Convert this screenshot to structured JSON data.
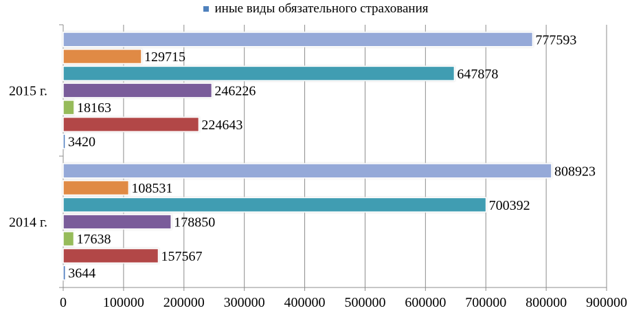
{
  "chart_data": {
    "type": "bar",
    "orientation": "horizontal",
    "categories": [
      "2015 г.",
      "2014 г."
    ],
    "series": [
      {
        "values": [
          777593,
          808923
        ],
        "color": "#95A9D8"
      },
      {
        "values": [
          129715,
          108531
        ],
        "color": "#E08A44"
      },
      {
        "values": [
          647878,
          700392
        ],
        "color": "#3F9DB2"
      },
      {
        "values": [
          246226,
          178850
        ],
        "color": "#7A5C9A"
      },
      {
        "values": [
          18163,
          17638
        ],
        "color": "#96BB5A"
      },
      {
        "values": [
          224643,
          157567
        ],
        "color": "#B24646"
      },
      {
        "values": [
          3420,
          3644
        ],
        "color": "#4E7DBF"
      }
    ],
    "legend": {
      "label": "иные виды обязательного страхования",
      "color": "#4F81BD",
      "position": "top"
    },
    "xlim": [
      0,
      900000
    ],
    "xticks": [
      "0",
      "100000",
      "200000",
      "300000",
      "400000",
      "500000",
      "600000",
      "700000",
      "800000",
      "900000"
    ],
    "grid": true
  }
}
